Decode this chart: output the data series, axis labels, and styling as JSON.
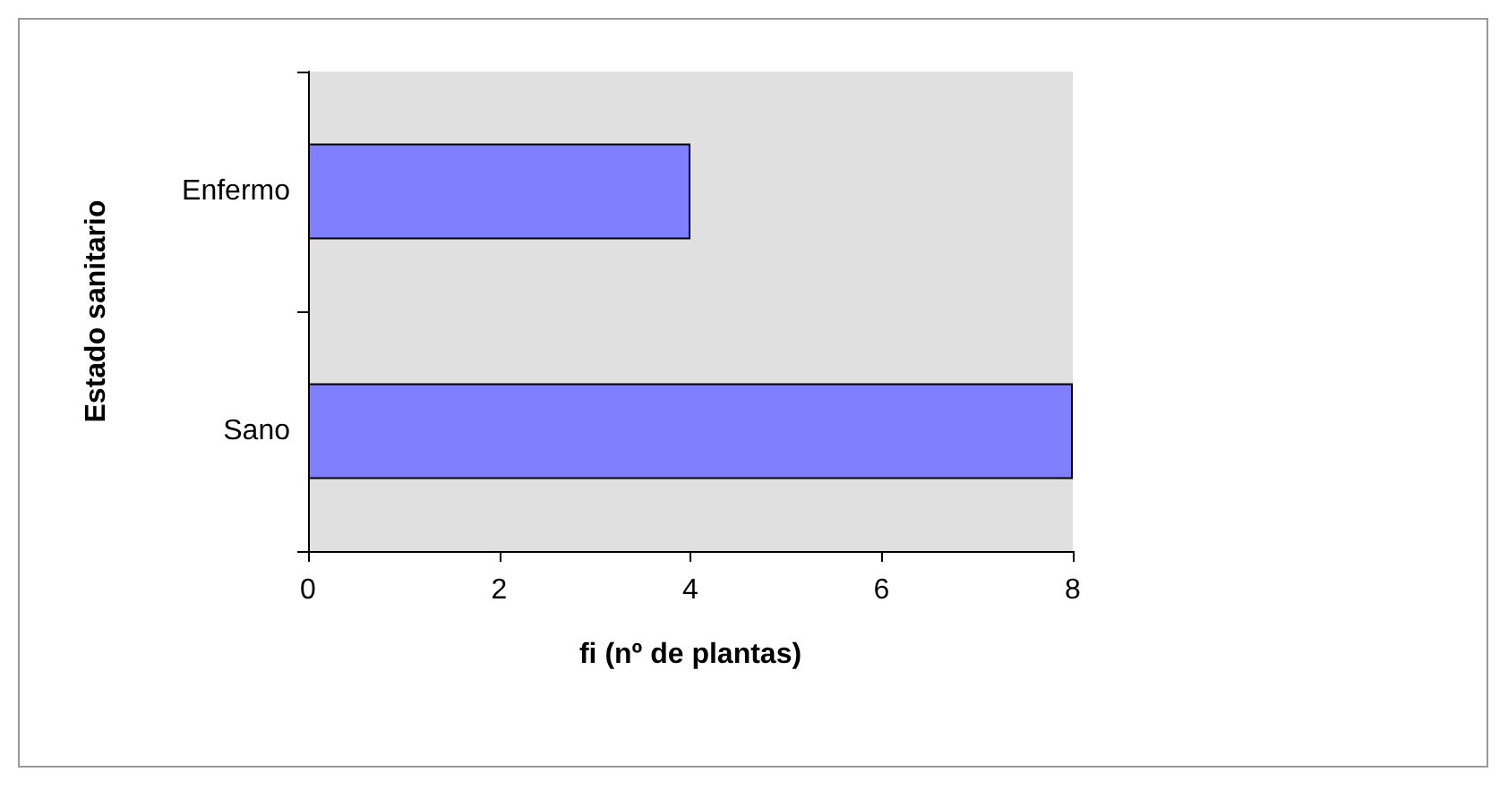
{
  "chart_data": {
    "type": "bar",
    "orientation": "horizontal",
    "categories": [
      "Enfermo",
      "Sano"
    ],
    "values": [
      4,
      8
    ],
    "color": "#8080ff",
    "xlim": [
      0,
      8
    ],
    "xticks": [
      0,
      2,
      4,
      6,
      8
    ],
    "xlabel": "fi (nº de plantas)",
    "ylabel": "Estado sanitario",
    "grid": false
  }
}
